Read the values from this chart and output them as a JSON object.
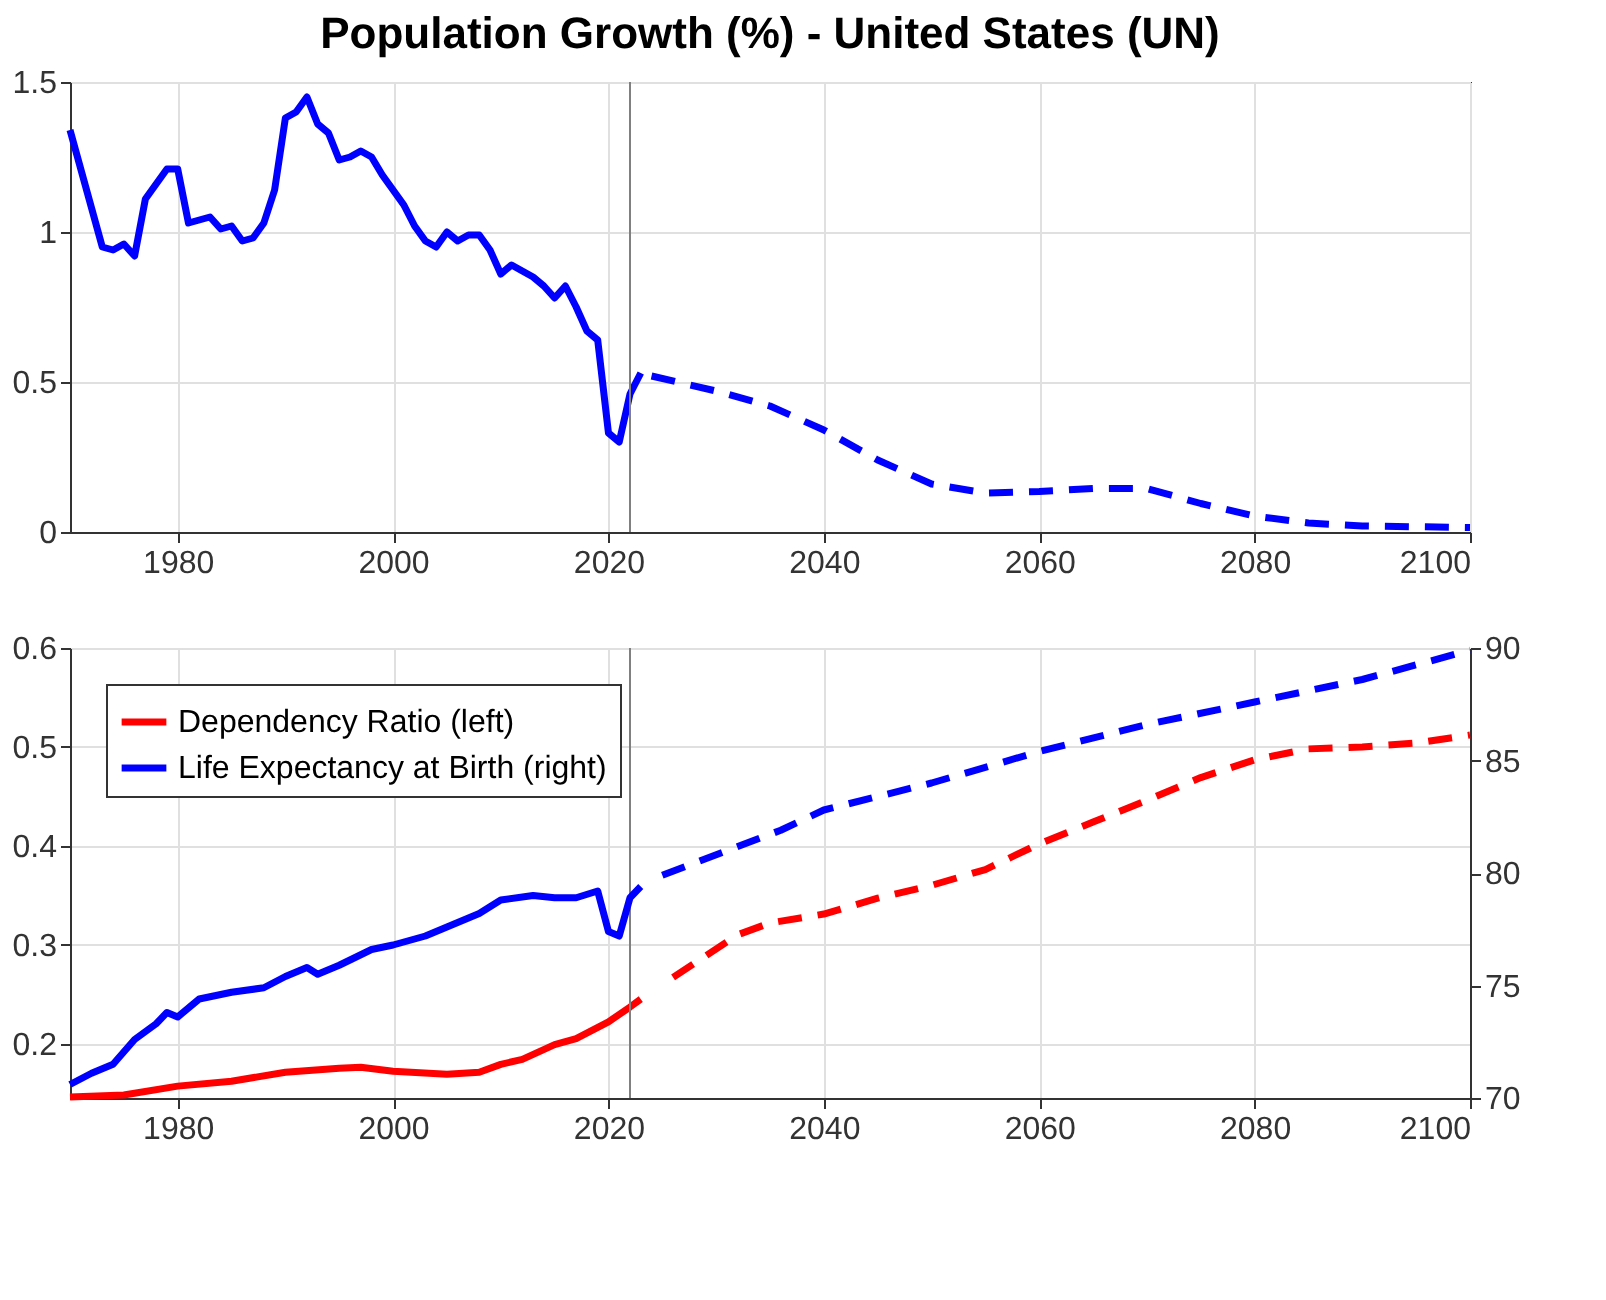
{
  "chart_data": [
    {
      "type": "line",
      "title": "Population Growth (%) - United States (UN)",
      "xlim": [
        1970,
        2100
      ],
      "xticks": [
        1980,
        2000,
        2020,
        2040,
        2060,
        2080,
        2100
      ],
      "ylim": [
        0,
        1.5
      ],
      "yticks": [
        0,
        0.5,
        1,
        1.5
      ],
      "grid": true,
      "legend": false,
      "ref_lines": [
        {
          "axis": "x",
          "value": 2022,
          "label": null,
          "color": "#808080"
        }
      ],
      "series": [
        {
          "color": "#0000ff",
          "line_style": "solid",
          "x": [
            1970,
            1973,
            1974,
            1975,
            1976,
            1977,
            1978,
            1979,
            1980,
            1981,
            1982,
            1983,
            1984,
            1985,
            1986,
            1987,
            1988,
            1989,
            1990,
            1991,
            1992,
            1993,
            1994,
            1995,
            1996,
            1997,
            1998,
            1999,
            2000,
            2001,
            2002,
            2003,
            2004,
            2005,
            2006,
            2007,
            2008,
            2009,
            2010,
            2011,
            2012,
            2013,
            2014,
            2015,
            2016,
            2017,
            2018,
            2019,
            2020,
            2021,
            2022,
            2023
          ],
          "values": [
            1.34,
            0.95,
            0.94,
            0.96,
            0.92,
            1.11,
            1.16,
            1.21,
            1.21,
            1.03,
            1.04,
            1.05,
            1.01,
            1.02,
            0.97,
            0.98,
            1.03,
            1.14,
            1.38,
            1.4,
            1.45,
            1.36,
            1.33,
            1.24,
            1.25,
            1.27,
            1.25,
            1.19,
            1.14,
            1.09,
            1.02,
            0.97,
            0.95,
            1.0,
            0.97,
            0.99,
            0.99,
            0.94,
            0.86,
            0.89,
            0.87,
            0.85,
            0.82,
            0.78,
            0.82,
            0.75,
            0.67,
            0.64,
            0.33,
            0.3,
            0.46,
            0.53
          ]
        },
        {
          "color": "#0000ff",
          "line_style": "dashed",
          "x": [
            2024,
            2030,
            2035,
            2040,
            2045,
            2050,
            2055,
            2060,
            2065,
            2070,
            2075,
            2080,
            2085,
            2090,
            2100
          ],
          "values": [
            0.52,
            0.47,
            0.42,
            0.34,
            0.24,
            0.16,
            0.13,
            0.135,
            0.145,
            0.145,
            0.095,
            0.053,
            0.03,
            0.02,
            0.015
          ]
        }
      ]
    },
    {
      "type": "line",
      "xlim": [
        1970,
        2100
      ],
      "xticks": [
        1980,
        2000,
        2020,
        2040,
        2060,
        2080,
        2100
      ],
      "ylim": [
        0.145,
        0.6
      ],
      "yticks": [
        0.2,
        0.3,
        0.4,
        0.5,
        0.6
      ],
      "y2lim": [
        70,
        90
      ],
      "y2ticks": [
        70,
        75,
        80,
        85,
        90
      ],
      "grid": true,
      "legend": "top left",
      "ref_lines": [
        {
          "axis": "x",
          "value": 2022,
          "label": null,
          "color": "#808080"
        }
      ],
      "series": [
        {
          "name": "Dependency Ratio (left)",
          "color": "#ff0000",
          "line_style": "solid",
          "x": [
            1970,
            1975,
            1980,
            1985,
            1990,
            1995,
            1997,
            2000,
            2005,
            2008,
            2010,
            2012,
            2015,
            2017,
            2020,
            2022,
            2023
          ],
          "values": [
            0.146,
            0.148,
            0.157,
            0.162,
            0.171,
            0.175,
            0.176,
            0.172,
            0.169,
            0.171,
            0.179,
            0.184,
            0.199,
            0.205,
            0.222,
            0.237,
            0.245
          ]
        },
        {
          "name": "Life Expectancy at Birth (right)",
          "color": "#0000ff",
          "line_style": "solid",
          "axis": "y2",
          "x": [
            1970,
            1972,
            1974,
            1976,
            1978,
            1979,
            1980,
            1982,
            1985,
            1988,
            1990,
            1992,
            1993,
            1995,
            1998,
            2000,
            2003,
            2005,
            2008,
            2010,
            2013,
            2015,
            2017,
            2019,
            2020,
            2021,
            2022,
            2023
          ],
          "values": [
            70.6,
            71.1,
            71.5,
            72.6,
            73.3,
            73.8,
            73.6,
            74.4,
            74.7,
            74.9,
            75.4,
            75.8,
            75.5,
            75.9,
            76.6,
            76.8,
            77.2,
            77.6,
            78.2,
            78.8,
            79.0,
            78.9,
            78.9,
            79.2,
            77.4,
            77.2,
            78.9,
            79.4
          ]
        },
        {
          "color": "#ff0000",
          "line_style": "dashed",
          "x": [
            2026,
            2032,
            2035,
            2040,
            2045,
            2050,
            2055,
            2060,
            2065,
            2070,
            2075,
            2080,
            2085,
            2090,
            2095,
            2100
          ],
          "values": [
            0.267,
            0.31,
            0.322,
            0.331,
            0.347,
            0.36,
            0.376,
            0.402,
            0.424,
            0.446,
            0.469,
            0.487,
            0.498,
            0.5,
            0.504,
            0.512
          ]
        },
        {
          "color": "#0000ff",
          "line_style": "dashed",
          "axis": "y2",
          "x": [
            2025,
            2036,
            2040,
            2050,
            2060,
            2070,
            2080,
            2090,
            2100
          ],
          "values": [
            79.9,
            81.9,
            82.8,
            84.0,
            85.4,
            86.6,
            87.6,
            88.6,
            89.9
          ]
        }
      ]
    }
  ]
}
